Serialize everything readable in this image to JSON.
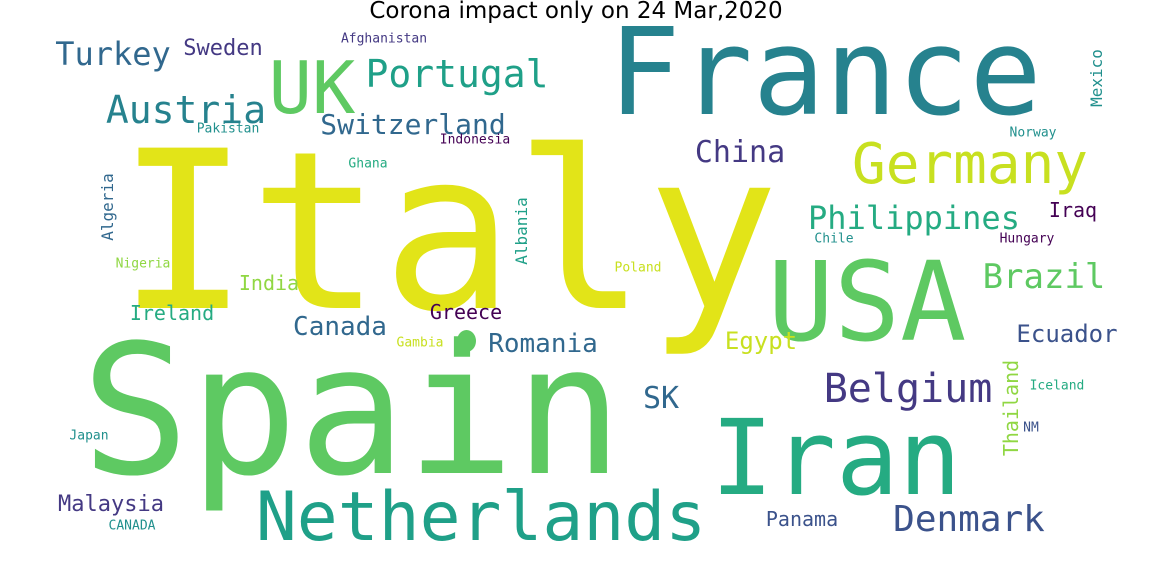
{
  "title": "Corona impact only on 24 Mar,2020",
  "palette": {
    "yellow": "#e2e418",
    "green": "#5ec962",
    "teal_dark": "#21908d",
    "teal_mid": "#26828e",
    "teal_green": "#25ab82",
    "teal_bright": "#1fa088",
    "slate": "#31688e",
    "blue": "#3b528b",
    "indigo": "#443983",
    "purple": "#440154",
    "lime": "#addc30",
    "lightgreen": "#90d743",
    "yellowgreen": "#c8e020"
  },
  "words": [
    {
      "text": "Italy",
      "color": "yellow"
    },
    {
      "text": "Spain",
      "color": "green"
    },
    {
      "text": "France",
      "color": "teal_mid"
    },
    {
      "text": "USA",
      "color": "green"
    },
    {
      "text": "Iran",
      "color": "teal_green"
    },
    {
      "text": "Netherlands",
      "color": "teal_bright"
    },
    {
      "text": "Germany",
      "color": "yellowgreen"
    },
    {
      "text": "UK",
      "color": "green"
    },
    {
      "text": "Portugal",
      "color": "teal_bright"
    },
    {
      "text": "Austria",
      "color": "teal_mid"
    },
    {
      "text": "Switzerland",
      "color": "slate"
    },
    {
      "text": "Turkey",
      "color": "slate"
    },
    {
      "text": "Sweden",
      "color": "indigo"
    },
    {
      "text": "Afghanistan",
      "color": "indigo"
    },
    {
      "text": "Mexico",
      "color": "teal_dark"
    },
    {
      "text": "Pakistan",
      "color": "teal_dark"
    },
    {
      "text": "Indonesia",
      "color": "purple"
    },
    {
      "text": "Norway",
      "color": "teal_dark"
    },
    {
      "text": "China",
      "color": "indigo"
    },
    {
      "text": "Ghana",
      "color": "teal_green"
    },
    {
      "text": "Philippines",
      "color": "teal_green"
    },
    {
      "text": "Iraq",
      "color": "purple"
    },
    {
      "text": "Algeria",
      "color": "slate"
    },
    {
      "text": "Albania",
      "color": "teal_bright"
    },
    {
      "text": "Chile",
      "color": "teal_dark"
    },
    {
      "text": "Hungary",
      "color": "purple"
    },
    {
      "text": "Nigeria",
      "color": "lightgreen"
    },
    {
      "text": "Poland",
      "color": "yellowgreen"
    },
    {
      "text": "Brazil",
      "color": "green"
    },
    {
      "text": "India",
      "color": "lightgreen"
    },
    {
      "text": "Ireland",
      "color": "teal_green"
    },
    {
      "text": "Greece",
      "color": "purple"
    },
    {
      "text": "Canada",
      "color": "slate"
    },
    {
      "text": "Ecuador",
      "color": "blue"
    },
    {
      "text": "Gambia",
      "color": "yellowgreen"
    },
    {
      "text": "Romania",
      "color": "slate"
    },
    {
      "text": "Egypt",
      "color": "yellowgreen"
    },
    {
      "text": "Thailand",
      "color": "lightgreen"
    },
    {
      "text": "Iceland",
      "color": "teal_green"
    },
    {
      "text": "Belgium",
      "color": "indigo"
    },
    {
      "text": "SK",
      "color": "slate"
    },
    {
      "text": "NM",
      "color": "blue"
    },
    {
      "text": "Japan",
      "color": "teal_dark"
    },
    {
      "text": "Malaysia",
      "color": "indigo"
    },
    {
      "text": "Panama",
      "color": "blue"
    },
    {
      "text": "Denmark",
      "color": "blue"
    },
    {
      "text": "CANADA",
      "color": "teal_dark"
    }
  ]
}
